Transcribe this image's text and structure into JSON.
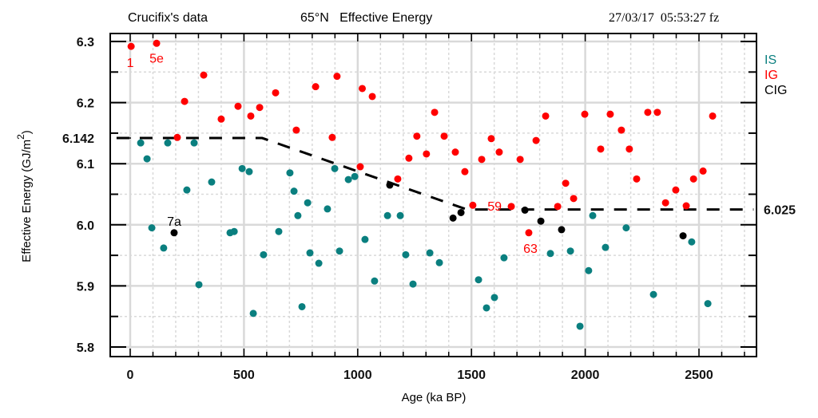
{
  "header": {
    "left_title": "Crucifix's data",
    "center_title": "65°N   Effective Energy",
    "timestamp": "27/03/17  05:53:27 fz"
  },
  "colors": {
    "IS": "#0a7f7f",
    "IG": "#ff0000",
    "CIG": "#000000",
    "grid": "#d9d9d9"
  },
  "chart_data": {
    "type": "scatter",
    "title": "65°N Effective Energy",
    "xlabel": "Age (ka BP)",
    "ylabel": "Effective Energy (GJ/m²)",
    "xlim": [
      -80,
      2760
    ],
    "ylim": [
      5.782,
      6.314
    ],
    "x_ticks": [
      0,
      500,
      1000,
      1500,
      2000,
      2500
    ],
    "x_tick_labels": [
      "0",
      "500",
      "1000",
      "1500",
      "2000",
      "2500"
    ],
    "y_ticks": [
      5.8,
      5.9,
      6.0,
      6.1,
      6.2,
      6.3
    ],
    "y_tick_labels": [
      "5.8",
      "5.9",
      "6.0",
      "6.1",
      "6.2",
      "6.3"
    ],
    "extra_y_label_left": {
      "value": 6.142,
      "label": "6.142"
    },
    "extra_y_label_right": {
      "value": 6.025,
      "label": "6.025"
    },
    "grid": true,
    "legend": {
      "placement": "right",
      "entries": [
        "IS",
        "IG",
        "CIG"
      ]
    },
    "threshold_line": {
      "style": "dashed",
      "points": [
        [
          -60,
          6.142
        ],
        [
          580,
          6.142
        ],
        [
          1480,
          6.025
        ],
        [
          2740,
          6.025
        ]
      ]
    },
    "annotations": [
      {
        "text": "1",
        "series": "IG",
        "x": 4,
        "y": 6.292
      },
      {
        "text": "5e",
        "series": "IG",
        "x": 116,
        "y": 6.297
      },
      {
        "text": "7a",
        "series": "CIG",
        "x": 193,
        "y": 5.987
      },
      {
        "text": "59",
        "series": "IG",
        "x": 1675,
        "y": 6.03
      },
      {
        "text": "63",
        "series": "IG",
        "x": 1752,
        "y": 5.987
      }
    ],
    "series": [
      {
        "name": "IG",
        "points": [
          [
            4,
            6.292
          ],
          [
            116,
            6.297
          ],
          [
            207,
            6.143
          ],
          [
            239,
            6.202
          ],
          [
            323,
            6.245
          ],
          [
            400,
            6.173
          ],
          [
            474,
            6.194
          ],
          [
            530,
            6.178
          ],
          [
            569,
            6.192
          ],
          [
            639,
            6.216
          ],
          [
            730,
            6.155
          ],
          [
            815,
            6.226
          ],
          [
            888,
            6.143
          ],
          [
            909,
            6.243
          ],
          [
            1011,
            6.095
          ],
          [
            1020,
            6.223
          ],
          [
            1064,
            6.21
          ],
          [
            1176,
            6.075
          ],
          [
            1225,
            6.109
          ],
          [
            1260,
            6.145
          ],
          [
            1302,
            6.116
          ],
          [
            1338,
            6.184
          ],
          [
            1380,
            6.145
          ],
          [
            1429,
            6.119
          ],
          [
            1471,
            6.087
          ],
          [
            1506,
            6.032
          ],
          [
            1545,
            6.107
          ],
          [
            1587,
            6.141
          ],
          [
            1622,
            6.119
          ],
          [
            1675,
            6.03
          ],
          [
            1714,
            6.107
          ],
          [
            1752,
            5.987
          ],
          [
            1784,
            6.138
          ],
          [
            1826,
            6.178
          ],
          [
            1879,
            6.03
          ],
          [
            1914,
            6.068
          ],
          [
            1949,
            6.043
          ],
          [
            1998,
            6.181
          ],
          [
            2068,
            6.124
          ],
          [
            2110,
            6.181
          ],
          [
            2159,
            6.155
          ],
          [
            2194,
            6.124
          ],
          [
            2226,
            6.075
          ],
          [
            2275,
            6.184
          ],
          [
            2317,
            6.184
          ],
          [
            2353,
            6.036
          ],
          [
            2398,
            6.057
          ],
          [
            2444,
            6.031
          ],
          [
            2476,
            6.075
          ],
          [
            2518,
            6.088
          ],
          [
            2560,
            6.178
          ]
        ]
      },
      {
        "name": "IS",
        "points": [
          [
            46,
            6.134
          ],
          [
            74,
            6.108
          ],
          [
            95,
            5.995
          ],
          [
            147,
            5.962
          ],
          [
            165,
            6.134
          ],
          [
            249,
            6.057
          ],
          [
            281,
            6.134
          ],
          [
            302,
            5.902
          ],
          [
            358,
            6.07
          ],
          [
            439,
            5.987
          ],
          [
            457,
            5.989
          ],
          [
            492,
            6.092
          ],
          [
            523,
            6.087
          ],
          [
            541,
            5.855
          ],
          [
            586,
            5.951
          ],
          [
            653,
            5.989
          ],
          [
            702,
            6.085
          ],
          [
            720,
            6.055
          ],
          [
            737,
            6.015
          ],
          [
            755,
            5.866
          ],
          [
            780,
            6.036
          ],
          [
            790,
            5.954
          ],
          [
            829,
            5.937
          ],
          [
            867,
            6.026
          ],
          [
            899,
            6.092
          ],
          [
            920,
            5.957
          ],
          [
            959,
            6.074
          ],
          [
            987,
            6.079
          ],
          [
            1032,
            5.976
          ],
          [
            1074,
            5.908
          ],
          [
            1131,
            6.015
          ],
          [
            1187,
            6.015
          ],
          [
            1211,
            5.951
          ],
          [
            1243,
            5.903
          ],
          [
            1317,
            5.954
          ],
          [
            1359,
            5.938
          ],
          [
            1531,
            5.91
          ],
          [
            1566,
            5.864
          ],
          [
            1601,
            5.881
          ],
          [
            1643,
            5.946
          ],
          [
            1847,
            5.953
          ],
          [
            1935,
            5.957
          ],
          [
            1977,
            5.834
          ],
          [
            2015,
            5.925
          ],
          [
            2033,
            6.015
          ],
          [
            2089,
            5.963
          ],
          [
            2180,
            5.995
          ],
          [
            2300,
            5.886
          ],
          [
            2468,
            5.972
          ],
          [
            2539,
            5.871
          ]
        ]
      },
      {
        "name": "CIG",
        "points": [
          [
            193,
            5.987
          ],
          [
            1141,
            6.065
          ],
          [
            1419,
            6.011
          ],
          [
            1454,
            6.02
          ],
          [
            1735,
            6.024
          ],
          [
            1805,
            6.006
          ],
          [
            1896,
            5.992
          ],
          [
            2430,
            5.982
          ]
        ]
      }
    ]
  }
}
